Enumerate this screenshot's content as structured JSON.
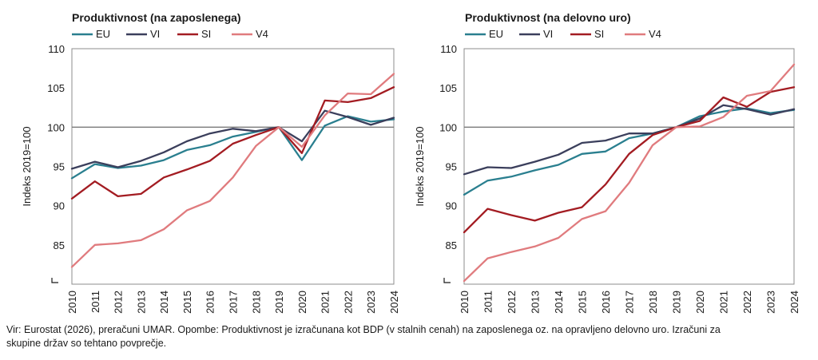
{
  "chart_data": [
    {
      "type": "line",
      "title": "Produktivnost (na zaposlenega)",
      "ylabel": "Indeks 2019=100",
      "xlabel": "",
      "ylim": [
        80,
        110
      ],
      "yticks": [
        85,
        90,
        95,
        100,
        105,
        110
      ],
      "reference_line": 100,
      "x": [
        "2010",
        "2011",
        "2012",
        "2013",
        "2014",
        "2015",
        "2016",
        "2017",
        "2018",
        "2019",
        "2020",
        "2021",
        "2022",
        "2023",
        "2024"
      ],
      "series": [
        {
          "name": "EU",
          "color": "#2a7f8f",
          "values": [
            93.5,
            95.3,
            94.8,
            95.1,
            95.8,
            97.1,
            97.7,
            98.8,
            99.4,
            100.0,
            95.8,
            100.2,
            101.4,
            100.7,
            101.0
          ]
        },
        {
          "name": "VI",
          "color": "#3b3f5c",
          "values": [
            94.7,
            95.6,
            94.9,
            95.7,
            96.8,
            98.2,
            99.2,
            99.8,
            99.5,
            100.0,
            98.2,
            102.1,
            101.3,
            100.3,
            101.2
          ]
        },
        {
          "name": "SI",
          "color": "#a31c22",
          "values": [
            90.9,
            93.1,
            91.2,
            91.5,
            93.6,
            94.6,
            95.7,
            97.9,
            99.0,
            100.0,
            96.7,
            103.4,
            103.2,
            103.7,
            105.1
          ]
        },
        {
          "name": "V4",
          "color": "#e07b7e",
          "values": [
            82.2,
            85.0,
            85.2,
            85.6,
            87.0,
            89.4,
            90.6,
            93.6,
            97.6,
            100.0,
            97.5,
            101.5,
            104.3,
            104.2,
            106.8
          ]
        }
      ],
      "legend_position": "top-left",
      "grid": false
    },
    {
      "type": "line",
      "title": "Produktivnost (na delovno uro)",
      "ylabel": "Indeks 2019=100",
      "xlabel": "",
      "ylim": [
        80,
        110
      ],
      "yticks": [
        85,
        90,
        95,
        100,
        105,
        110
      ],
      "reference_line": 100,
      "x": [
        "2010",
        "2011",
        "2012",
        "2013",
        "2014",
        "2015",
        "2016",
        "2017",
        "2018",
        "2019",
        "2020",
        "2021",
        "2022",
        "2023",
        "2024"
      ],
      "series": [
        {
          "name": "EU",
          "color": "#2a7f8f",
          "values": [
            91.4,
            93.2,
            93.7,
            94.5,
            95.2,
            96.6,
            96.9,
            98.6,
            99.2,
            100.0,
            101.4,
            102.0,
            102.4,
            101.8,
            102.2
          ]
        },
        {
          "name": "VI",
          "color": "#3b3f5c",
          "values": [
            94.0,
            94.9,
            94.8,
            95.6,
            96.5,
            98.0,
            98.3,
            99.2,
            99.2,
            100.0,
            101.1,
            102.8,
            102.3,
            101.6,
            102.3
          ]
        },
        {
          "name": "SI",
          "color": "#a31c22",
          "values": [
            86.6,
            89.6,
            88.8,
            88.1,
            89.1,
            89.8,
            92.7,
            96.6,
            99.0,
            100.0,
            100.8,
            103.8,
            102.6,
            104.5,
            105.1
          ]
        },
        {
          "name": "V4",
          "color": "#e07b7e",
          "values": [
            80.4,
            83.3,
            84.1,
            84.8,
            85.9,
            88.3,
            89.3,
            92.9,
            97.7,
            100.0,
            100.1,
            101.3,
            104.0,
            104.6,
            108.0
          ]
        }
      ],
      "legend_position": "top-left",
      "grid": false
    }
  ],
  "caption": {
    "line1": "Vir: Eurostat (2026), preračuni UMAR. Opombe: Produktivnost je izračunana kot BDP (v stalnih cenah) na zaposlenega oz. na opravljeno delovno uro.  Izračuni za",
    "line2": "skupine držav so tehtano povprečje."
  }
}
